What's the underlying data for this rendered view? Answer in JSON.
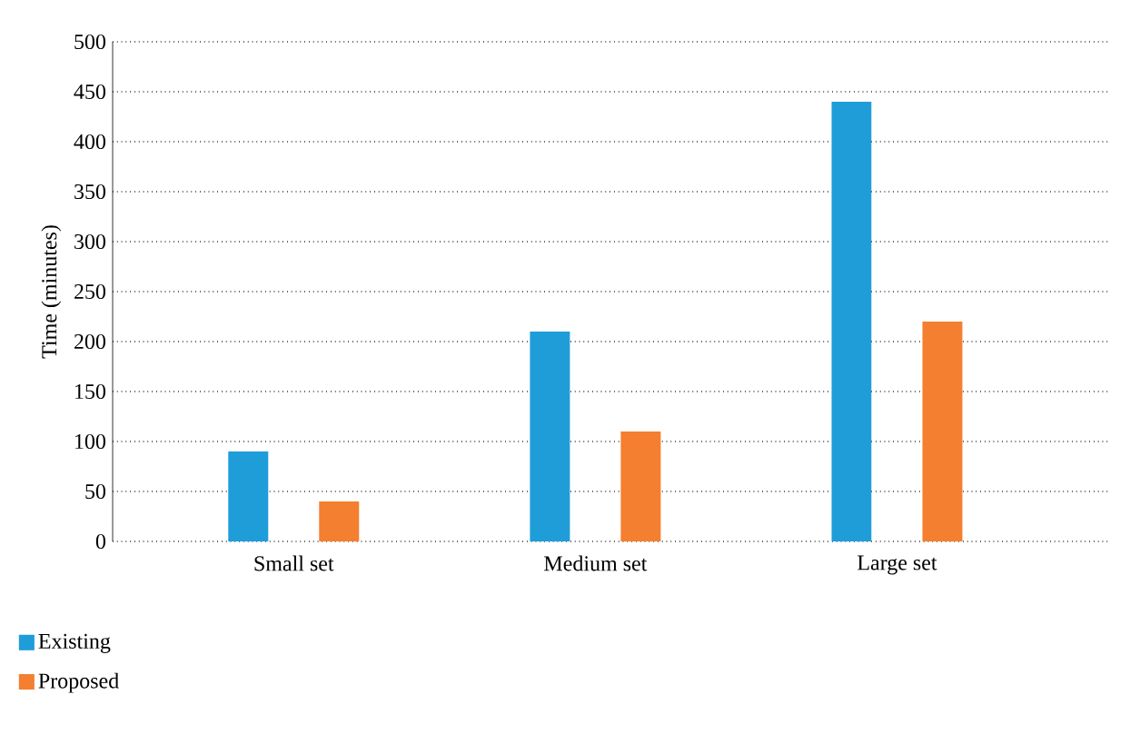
{
  "chart_data": {
    "type": "bar",
    "ylabel": "Time (minutes)",
    "categories": [
      "Small set",
      "Medium set",
      "Large set"
    ],
    "series": [
      {
        "name": "Existing",
        "color": "#1f9dd9",
        "values": [
          90,
          210,
          440
        ]
      },
      {
        "name": "Proposed",
        "color": "#f47f30",
        "values": [
          40,
          110,
          220
        ]
      }
    ],
    "ylim": [
      0,
      500
    ],
    "yticks": [
      0,
      50,
      100,
      150,
      200,
      250,
      300,
      350,
      400,
      450,
      500
    ],
    "grid": "y",
    "legend": "bottom left"
  }
}
